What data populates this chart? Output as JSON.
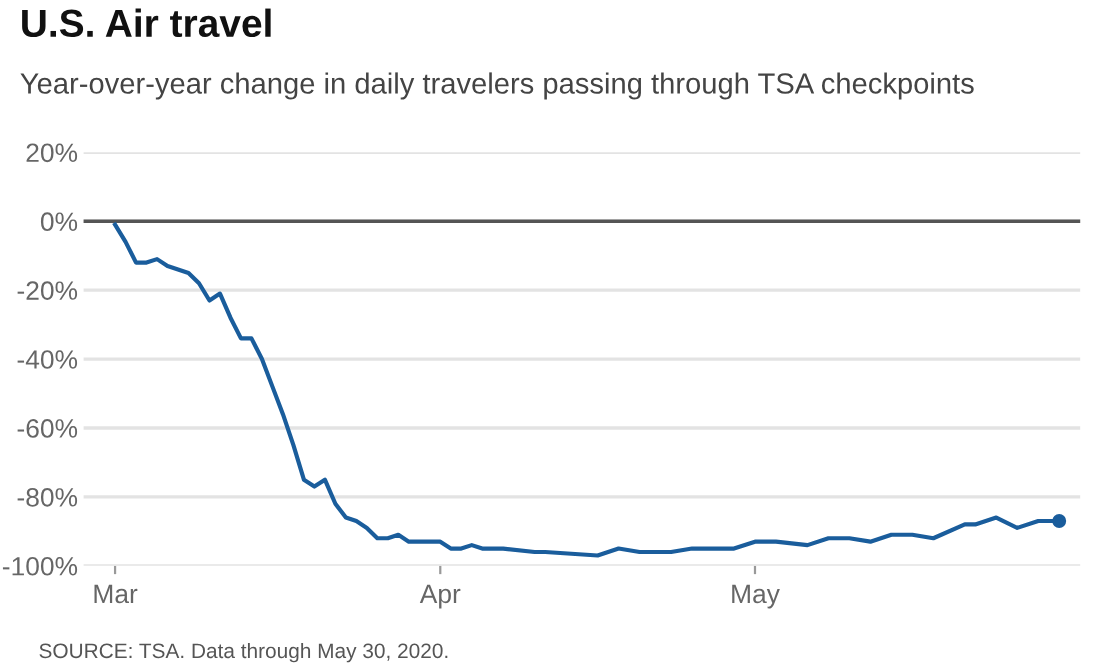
{
  "chart_data": {
    "type": "line",
    "title": "U.S. Air travel",
    "subtitle": "Year-over-year change in daily travelers passing through TSA checkpoints",
    "annotations": [
      "SOURCE: TSA. Data through May 30, 2020."
    ],
    "series": [
      {
        "color": "#1a5d9c",
        "x": [
          "2020-03-01",
          "2020-03-02",
          "2020-03-03",
          "2020-03-04",
          "2020-03-05",
          "2020-03-06",
          "2020-03-07",
          "2020-03-08",
          "2020-03-09",
          "2020-03-10",
          "2020-03-11",
          "2020-03-12",
          "2020-03-13",
          "2020-03-14",
          "2020-03-15",
          "2020-03-16",
          "2020-03-17",
          "2020-03-18",
          "2020-03-19",
          "2020-03-20",
          "2020-03-21",
          "2020-03-22",
          "2020-03-23",
          "2020-03-24",
          "2020-03-25",
          "2020-03-26",
          "2020-03-27",
          "2020-03-28",
          "2020-03-29",
          "2020-03-30",
          "2020-03-31",
          "2020-04-01",
          "2020-04-02",
          "2020-04-03",
          "2020-04-04",
          "2020-04-05",
          "2020-04-07",
          "2020-04-10",
          "2020-04-11",
          "2020-04-16",
          "2020-04-18",
          "2020-04-20",
          "2020-04-23",
          "2020-04-25",
          "2020-04-26",
          "2020-04-29",
          "2020-05-01",
          "2020-05-03",
          "2020-05-06",
          "2020-05-08",
          "2020-05-10",
          "2020-05-12",
          "2020-05-14",
          "2020-05-16",
          "2020-05-18",
          "2020-05-21",
          "2020-05-22",
          "2020-05-24",
          "2020-05-26",
          "2020-05-28",
          "2020-05-30"
        ],
        "values": [
          -1,
          -6,
          -12,
          -12,
          -11,
          -13,
          -14,
          -15,
          -18,
          -23,
          -21,
          -28,
          -34,
          -34,
          -40,
          -48,
          -56,
          -65,
          -75,
          -77,
          -75,
          -82,
          -86,
          -87,
          -89,
          -92,
          -92,
          -91,
          -93,
          -93,
          -93,
          -93,
          -95,
          -95,
          -94,
          -95,
          -95,
          -96,
          -96,
          -97,
          -95,
          -96,
          -96,
          -95,
          -95,
          -95,
          -93,
          -93,
          -94,
          -92,
          -92,
          -93,
          -91,
          -91,
          -92,
          -88,
          -88,
          -86,
          -89,
          -87,
          -87
        ]
      },
      {
        "type": "scatter",
        "marker": "circle",
        "color": "#1a5d9c",
        "x": [
          "2020-05-30"
        ],
        "values": [
          -87
        ]
      }
    ],
    "xlim": [
      "2020-02-27",
      "2020-06-01"
    ],
    "xticks": [
      {
        "value": "2020-03-01",
        "label": "Mar"
      },
      {
        "value": "2020-04-01",
        "label": "Apr"
      },
      {
        "value": "2020-05-01",
        "label": "May"
      }
    ],
    "ylim": [
      -100,
      20
    ],
    "yticks": [
      {
        "value": 20,
        "label": "20%"
      },
      {
        "value": 0,
        "label": "0%"
      },
      {
        "value": -20,
        "label": "-20%"
      },
      {
        "value": -40,
        "label": "-40%"
      },
      {
        "value": -60,
        "label": "-60%"
      },
      {
        "value": -80,
        "label": "-80%"
      },
      {
        "value": -100,
        "label": "-100%"
      }
    ],
    "ref_lines": [
      {
        "axis": "y",
        "value": 0,
        "color": "#555555"
      }
    ],
    "grid": "y",
    "legend": false,
    "marker": "none",
    "line_style": "solid"
  }
}
